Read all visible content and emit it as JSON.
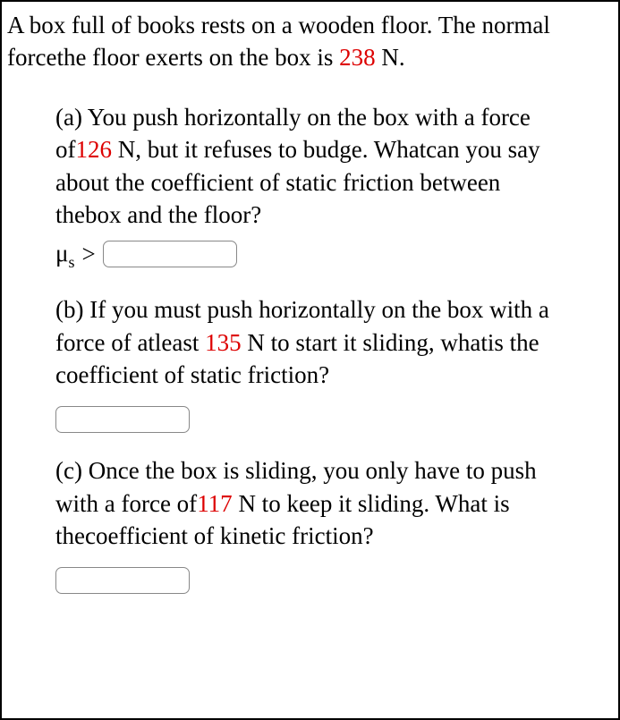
{
  "intro": {
    "part1": "A box full of books rests on a wooden floor. The normal forcethe floor exerts on the box is ",
    "value1": "238",
    "part2": " N."
  },
  "partA": {
    "text1": "(a) You push horizontally on the box with a force of",
    "value1": "126",
    "text2": " N, but it refuses to budge. Whatcan you say about the coefficient of static friction between thebox and the floor?",
    "mu": "μ",
    "sub": "s",
    "gt": ">"
  },
  "partB": {
    "text1": "(b) If you must push horizontally on the box with a force of atleast ",
    "value1": "135",
    "text2": " N to start it sliding, whatis the coefficient of static friction?"
  },
  "partC": {
    "text1": "(c) Once the box is sliding, you only have to push with a force of",
    "value1": "117",
    "text2": " N to keep it sliding. What is thecoefficient of kinetic friction?"
  },
  "colors": {
    "text": "#000000",
    "highlight": "#dd0000",
    "border": "#000000",
    "input_border": "#888888",
    "background": "#ffffff"
  },
  "typography": {
    "font_family": "Times New Roman",
    "body_fontsize": 27,
    "subscript_fontsize": 18
  }
}
